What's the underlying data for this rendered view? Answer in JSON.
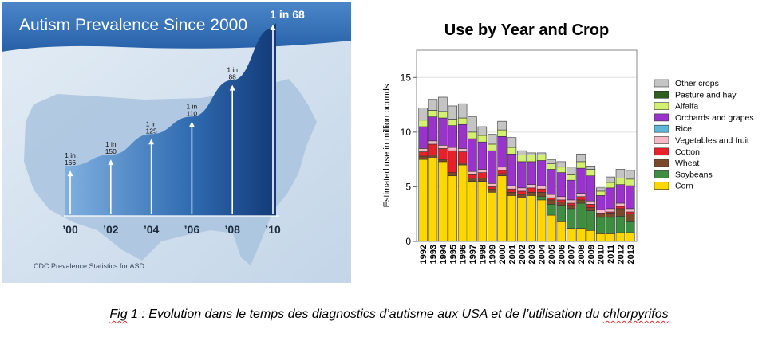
{
  "caption": {
    "fig_label": "Fig",
    "text": " 1 : Evolution dans le temps des diagnostics d’autisme aux USA et de l’utilisation du ",
    "word": "chlorpyrifos"
  },
  "chart_data": [
    {
      "type": "area",
      "title": "Autism Prevalence Since 2000",
      "source": "CDC Prevalence Statistics for ASD",
      "x_ticks": [
        "’00",
        "’02",
        "’04",
        "’06",
        "’08",
        "’10"
      ],
      "points": [
        {
          "x": 2000,
          "label_top": "1 in",
          "label_bottom": "166",
          "prevalence_per_1000": 6.0
        },
        {
          "x": 2002,
          "label_top": "1 in",
          "label_bottom": "150",
          "prevalence_per_1000": 6.7
        },
        {
          "x": 2004,
          "label_top": "1 in",
          "label_bottom": "125",
          "prevalence_per_1000": 8.0
        },
        {
          "x": 2006,
          "label_top": "1 in",
          "label_bottom": "110",
          "prevalence_per_1000": 9.1
        },
        {
          "x": 2008,
          "label_top": "1 in",
          "label_bottom": "88",
          "prevalence_per_1000": 11.4
        },
        {
          "x": 2010,
          "label_top": "",
          "label_bottom": "1 in 68",
          "prevalence_per_1000": 14.7
        }
      ],
      "colors": {
        "header": "#2e6ab4",
        "fill_dark": "#163f7c",
        "fill_light": "#5d95cf",
        "background": "#d6e3ef",
        "map": "#aac4df"
      }
    },
    {
      "type": "bar",
      "stacked": true,
      "title": "Use by Year and Crop",
      "ylabel": "Estimated use in million pounds",
      "xlabel": "",
      "ylim": [
        0,
        17.5
      ],
      "yticks": [
        0,
        5,
        10,
        15
      ],
      "grid": true,
      "legend_position": "right",
      "categories": [
        "1992",
        "1993",
        "1994",
        "1995",
        "1996",
        "1997",
        "1998",
        "1999",
        "2000",
        "2001",
        "2002",
        "2003",
        "2004",
        "2005",
        "2006",
        "2007",
        "2008",
        "2009",
        "2010",
        "2011",
        "2012",
        "2013"
      ],
      "series": [
        {
          "name": "Corn",
          "color": "#ffd700",
          "values": [
            7.5,
            7.7,
            7.3,
            6.0,
            7.0,
            5.5,
            5.5,
            4.5,
            6.0,
            4.2,
            4.0,
            4.2,
            3.8,
            2.4,
            1.8,
            1.2,
            1.2,
            1.0,
            0.7,
            0.7,
            0.8,
            0.8
          ]
        },
        {
          "name": "Soybeans",
          "color": "#3e8e41",
          "values": [
            0,
            0,
            0,
            0,
            0,
            0,
            0,
            0,
            0,
            0,
            0,
            0,
            0.3,
            1.0,
            1.5,
            1.8,
            2.3,
            1.8,
            1.5,
            1.5,
            1.5,
            1.0
          ]
        },
        {
          "name": "Wheat",
          "color": "#7a4a2a",
          "values": [
            0.3,
            0.2,
            0.2,
            0.3,
            0.2,
            0.3,
            0.3,
            0.3,
            0.2,
            0.3,
            0.3,
            0.3,
            0.4,
            0.4,
            0.3,
            0.3,
            0.3,
            0.3,
            0.3,
            0.4,
            0.7,
            0.7
          ]
        },
        {
          "name": "Cotton",
          "color": "#e8202a",
          "values": [
            0.4,
            1.0,
            1.0,
            2.0,
            1.0,
            0.3,
            0.5,
            0.2,
            0.3,
            0.3,
            0.3,
            0.4,
            0.3,
            0.2,
            0.2,
            0.2,
            0.3,
            0.3,
            0.1,
            0.1,
            0.2,
            0.2
          ]
        },
        {
          "name": "Vegetables and fruit",
          "color": "#f7b8c8",
          "values": [
            0.3,
            0.3,
            0.3,
            0.3,
            0.3,
            0.3,
            0.3,
            0.3,
            0.3,
            0.3,
            0.3,
            0.3,
            0.3,
            0.3,
            0.3,
            0.3,
            0.3,
            0.3,
            0.3,
            0.3,
            0.3,
            0.3
          ]
        },
        {
          "name": "Rice",
          "color": "#5bb8d8",
          "values": [
            0,
            0,
            0,
            0,
            0,
            0,
            0,
            0,
            0,
            0,
            0,
            0,
            0,
            0,
            0,
            0,
            0,
            0,
            0,
            0,
            0,
            0
          ]
        },
        {
          "name": "Orchards and grapes",
          "color": "#9933cc",
          "values": [
            2.0,
            2.2,
            2.5,
            2.0,
            2.2,
            3.0,
            2.5,
            3.0,
            2.8,
            2.9,
            2.4,
            2.1,
            2.3,
            2.3,
            2.2,
            1.8,
            2.3,
            2.3,
            1.3,
            1.9,
            1.7,
            2.1
          ]
        },
        {
          "name": "Alfalfa",
          "color": "#d4f070",
          "values": [
            0.6,
            0.6,
            0.6,
            0.6,
            0.6,
            0.6,
            0.6,
            0.6,
            0.6,
            0.6,
            0.6,
            0.6,
            0.5,
            0.5,
            0.5,
            0.5,
            0.6,
            0.6,
            0.4,
            0.5,
            0.6,
            0.6
          ]
        },
        {
          "name": "Pasture and hay",
          "color": "#2f5e1e",
          "values": [
            0,
            0,
            0,
            0,
            0,
            0,
            0,
            0,
            0,
            0,
            0,
            0,
            0,
            0,
            0,
            0,
            0,
            0,
            0,
            0,
            0,
            0
          ]
        },
        {
          "name": "Other crops",
          "color": "#c4c4c4",
          "values": [
            1.1,
            1.0,
            1.3,
            1.2,
            1.3,
            1.4,
            0.8,
            0.9,
            0.8,
            0.9,
            0.4,
            0.2,
            0.2,
            0.4,
            0.5,
            0.7,
            0.7,
            0.3,
            0.3,
            0.5,
            0.8,
            0.8
          ]
        }
      ],
      "legend": [
        "Other crops",
        "Pasture and hay",
        "Alfalfa",
        "Orchards and grapes",
        "Rice",
        "Vegetables and fruit",
        "Cotton",
        "Wheat",
        "Soybeans",
        "Corn"
      ]
    }
  ]
}
